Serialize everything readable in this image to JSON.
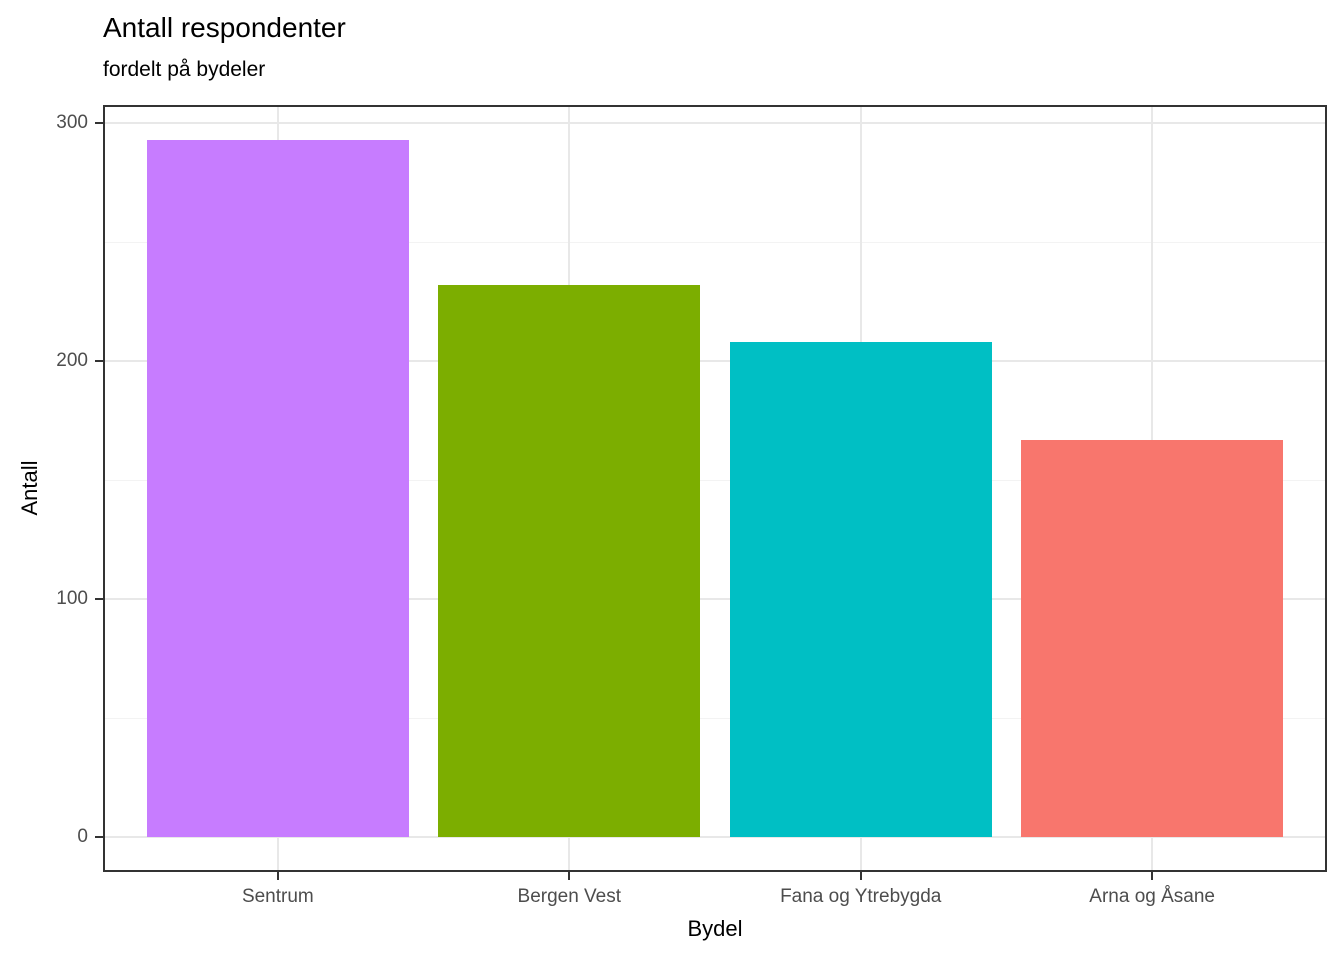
{
  "chart_data": {
    "type": "bar",
    "title": "Antall respondenter",
    "subtitle": "fordelt på bydeler",
    "xlabel": "Bydel",
    "ylabel": "Antall",
    "categories": [
      "Sentrum",
      "Bergen Vest",
      "Fana og Ytrebygda",
      "Arna og Åsane"
    ],
    "values": [
      293,
      232,
      208,
      167
    ],
    "bar_colors": [
      "#C77CFF",
      "#7CAE00",
      "#00BFC4",
      "#F8766D"
    ],
    "ylim": [
      0,
      300
    ],
    "y_major_ticks": [
      0,
      100,
      200,
      300
    ],
    "y_minor_ticks": [
      50,
      150,
      250
    ],
    "bar_width_fraction": 0.9,
    "grid": "horizontal-major-minor-and-vertical-major",
    "legend_position": "none",
    "colors": {
      "background": "#FFFFFF",
      "panel_background": "#FFFFFF",
      "panel_border": "#333333",
      "grid_major": "#E8E8E8",
      "grid_minor": "#F3F3F3",
      "tick_mark": "#333333",
      "tick_label": "#4D4D4D",
      "title": "#000000",
      "axis_title": "#000000"
    }
  }
}
